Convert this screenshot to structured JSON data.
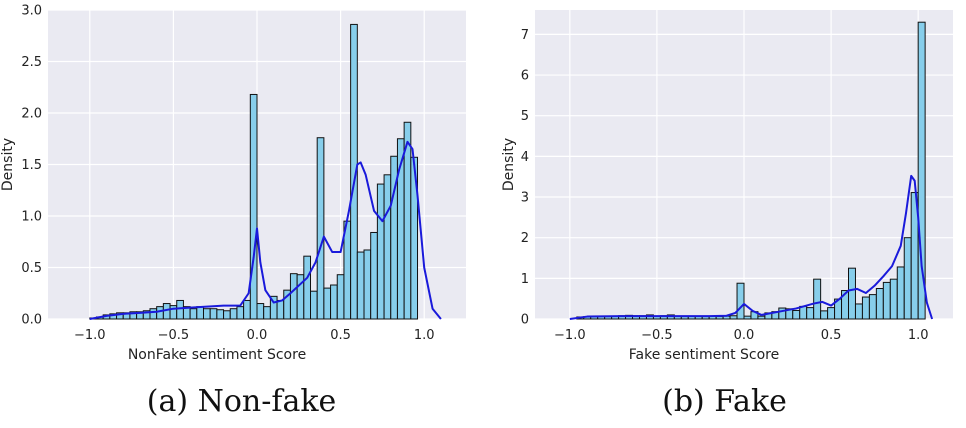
{
  "chart_data": [
    {
      "type": "bar",
      "caption": "(a) Non-fake",
      "xlabel": "NonFake sentiment Score",
      "ylabel": "Density",
      "xlim": [
        -1.25,
        1.25
      ],
      "ylim": [
        0,
        3.0
      ],
      "xticks": [
        -1.0,
        -0.5,
        0.0,
        0.5,
        1.0
      ],
      "xtick_labels": [
        "−1.0",
        "−0.5",
        "0.0",
        "0.5",
        "1.0"
      ],
      "yticks": [
        0,
        0.5,
        1.0,
        1.5,
        2.0,
        2.5,
        3.0
      ],
      "ytick_labels": [
        "0.0",
        "0.5",
        "1.0",
        "1.5",
        "2.0",
        "2.5",
        "3.0"
      ],
      "bar_color": "#87ceeb",
      "edge_color": "#111111",
      "kde_color": "#1a1adb",
      "bins": {
        "start": -1.0,
        "width": 0.04,
        "values": [
          0.01,
          0.02,
          0.04,
          0.05,
          0.06,
          0.06,
          0.07,
          0.07,
          0.08,
          0.1,
          0.12,
          0.15,
          0.13,
          0.18,
          0.12,
          0.1,
          0.12,
          0.1,
          0.1,
          0.09,
          0.08,
          0.1,
          0.12,
          0.18,
          2.18,
          0.15,
          0.12,
          0.22,
          0.18,
          0.28,
          0.44,
          0.43,
          0.61,
          0.27,
          1.76,
          0.3,
          0.33,
          0.43,
          0.95,
          2.86,
          0.65,
          0.67,
          0.84,
          1.31,
          1.4,
          1.58,
          1.75,
          1.91,
          1.57
        ]
      },
      "kde": {
        "x": [
          -1.0,
          -0.9,
          -0.8,
          -0.7,
          -0.6,
          -0.5,
          -0.4,
          -0.3,
          -0.2,
          -0.1,
          -0.05,
          -0.02,
          0.0,
          0.02,
          0.05,
          0.1,
          0.15,
          0.2,
          0.3,
          0.35,
          0.4,
          0.45,
          0.5,
          0.55,
          0.6,
          0.62,
          0.65,
          0.7,
          0.75,
          0.8,
          0.85,
          0.9,
          0.93,
          0.96,
          1.0,
          1.05,
          1.1
        ],
        "y": [
          0.0,
          0.03,
          0.05,
          0.06,
          0.07,
          0.1,
          0.11,
          0.12,
          0.13,
          0.13,
          0.25,
          0.6,
          0.88,
          0.55,
          0.28,
          0.16,
          0.18,
          0.25,
          0.4,
          0.55,
          0.8,
          0.65,
          0.65,
          1.05,
          1.5,
          1.52,
          1.4,
          1.05,
          0.95,
          1.1,
          1.45,
          1.72,
          1.65,
          1.2,
          0.5,
          0.1,
          0.0
        ]
      }
    },
    {
      "type": "bar",
      "caption": "(b) Fake",
      "xlabel": "Fake sentiment Score",
      "ylabel": "Density",
      "xlim": [
        -1.2,
        1.2
      ],
      "ylim": [
        0,
        7.6
      ],
      "xticks": [
        -1.0,
        -0.5,
        0.0,
        0.5,
        1.0
      ],
      "xtick_labels": [
        "−1.0",
        "−0.5",
        "0.0",
        "0.5",
        "1.0"
      ],
      "yticks": [
        0,
        1,
        2,
        3,
        4,
        5,
        6,
        7
      ],
      "ytick_labels": [
        "0",
        "1",
        "2",
        "3",
        "4",
        "5",
        "6",
        "7"
      ],
      "bar_color": "#87ceeb",
      "edge_color": "#111111",
      "kde_color": "#1a1adb",
      "bins": {
        "start": -0.96,
        "width": 0.04,
        "values": [
          0.05,
          0.06,
          0.06,
          0.07,
          0.06,
          0.07,
          0.08,
          0.09,
          0.08,
          0.08,
          0.1,
          0.07,
          0.08,
          0.1,
          0.07,
          0.06,
          0.07,
          0.07,
          0.06,
          0.07,
          0.06,
          0.07,
          0.08,
          0.88,
          0.07,
          0.18,
          0.07,
          0.15,
          0.18,
          0.27,
          0.25,
          0.21,
          0.31,
          0.28,
          0.98,
          0.2,
          0.28,
          0.49,
          0.7,
          1.25,
          0.37,
          0.54,
          0.6,
          0.75,
          0.9,
          0.98,
          1.28,
          2.0,
          3.11,
          7.3,
          0.0
        ]
      },
      "kde": {
        "x": [
          -1.0,
          -0.9,
          -0.7,
          -0.5,
          -0.3,
          -0.2,
          -0.1,
          -0.05,
          0.0,
          0.05,
          0.1,
          0.2,
          0.3,
          0.4,
          0.45,
          0.5,
          0.55,
          0.6,
          0.65,
          0.7,
          0.75,
          0.8,
          0.85,
          0.9,
          0.93,
          0.96,
          0.98,
          1.0,
          1.02,
          1.05,
          1.08
        ],
        "y": [
          0.0,
          0.06,
          0.07,
          0.07,
          0.07,
          0.07,
          0.08,
          0.15,
          0.37,
          0.2,
          0.1,
          0.18,
          0.26,
          0.38,
          0.42,
          0.33,
          0.5,
          0.7,
          0.74,
          0.64,
          0.82,
          1.05,
          1.3,
          1.8,
          2.6,
          3.52,
          3.4,
          2.5,
          1.3,
          0.4,
          0.0
        ]
      }
    }
  ]
}
